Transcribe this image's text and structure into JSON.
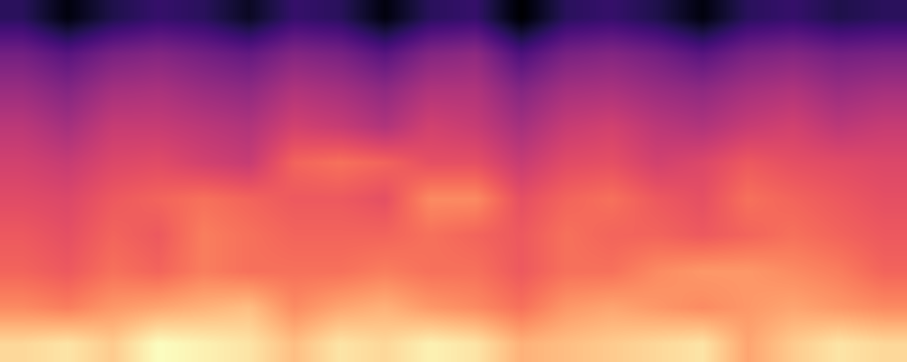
{
  "chart_data": {
    "type": "heatmap",
    "tick_labels": false,
    "grid": false,
    "cells": [
      [
        22,
        12,
        20,
        24,
        22,
        15,
        24,
        22,
        12,
        22,
        24,
        10,
        22,
        24,
        20,
        12,
        22,
        24,
        20,
        22
      ],
      [
        35,
        30,
        36,
        38,
        35,
        32,
        38,
        36,
        30,
        38,
        40,
        28,
        36,
        38,
        35,
        30,
        36,
        38,
        35,
        36
      ],
      [
        42,
        38,
        44,
        45,
        42,
        40,
        46,
        44,
        40,
        46,
        46,
        38,
        44,
        45,
        42,
        40,
        44,
        46,
        42,
        44
      ],
      [
        48,
        44,
        50,
        50,
        48,
        46,
        52,
        50,
        46,
        52,
        50,
        44,
        50,
        52,
        48,
        46,
        50,
        52,
        48,
        50
      ],
      [
        52,
        50,
        54,
        55,
        52,
        50,
        60,
        62,
        60,
        56,
        56,
        50,
        55,
        56,
        52,
        54,
        58,
        56,
        55,
        54
      ],
      [
        55,
        54,
        58,
        60,
        62,
        60,
        58,
        58,
        56,
        66,
        66,
        56,
        60,
        62,
        58,
        56,
        62,
        60,
        58,
        56
      ],
      [
        58,
        56,
        60,
        58,
        64,
        62,
        60,
        60,
        60,
        62,
        60,
        58,
        62,
        60,
        60,
        58,
        60,
        62,
        60,
        58
      ],
      [
        60,
        58,
        62,
        60,
        64,
        62,
        62,
        62,
        64,
        62,
        62,
        58,
        62,
        62,
        66,
        68,
        68,
        66,
        64,
        60
      ],
      [
        66,
        64,
        68,
        70,
        72,
        74,
        66,
        70,
        72,
        68,
        66,
        62,
        68,
        70,
        68,
        66,
        68,
        70,
        68,
        66
      ],
      [
        78,
        80,
        76,
        84,
        82,
        80,
        74,
        80,
        78,
        82,
        80,
        72,
        74,
        76,
        78,
        80,
        70,
        76,
        80,
        78
      ]
    ]
  }
}
